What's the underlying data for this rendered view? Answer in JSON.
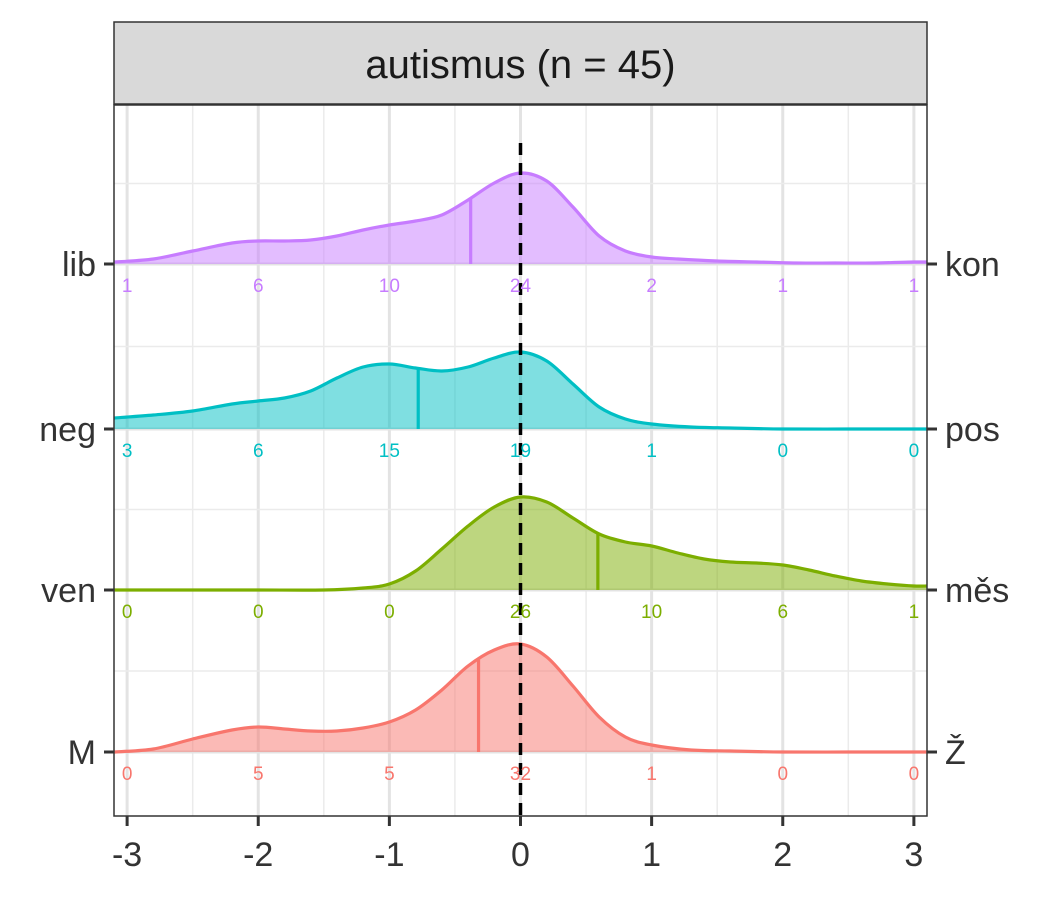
{
  "chart_data": {
    "type": "ridgeline",
    "title": "autismus (n = 45)",
    "xlabel": "",
    "ylabel": "",
    "xlim": [
      -3.1,
      3.1
    ],
    "x_ticks": [
      "-3",
      "-2",
      "-1",
      "0",
      "1",
      "2",
      "3"
    ],
    "x_tick_values": [
      -3,
      -2,
      -1,
      0,
      1,
      2,
      3
    ],
    "reference_line": 0,
    "grid": true,
    "count_positions": [
      -3,
      -2,
      -1,
      0,
      1,
      2,
      3
    ],
    "series": [
      {
        "left_label": "lib",
        "right_label": "kon",
        "color": "#C77CFF",
        "median": -0.38,
        "counts": [
          "1",
          "6",
          "10",
          "24",
          "2",
          "1",
          "1"
        ],
        "density_x": [
          -3.1,
          -2.8,
          -2.5,
          -2.2,
          -2.0,
          -1.8,
          -1.6,
          -1.4,
          -1.2,
          -1.0,
          -0.8,
          -0.6,
          -0.4,
          -0.2,
          0.0,
          0.2,
          0.4,
          0.6,
          0.8,
          1.0,
          1.2,
          1.5,
          1.8,
          2.1,
          2.4,
          2.7,
          3.0,
          3.1
        ],
        "density_y": [
          0.02,
          0.05,
          0.13,
          0.21,
          0.23,
          0.23,
          0.24,
          0.28,
          0.34,
          0.39,
          0.43,
          0.49,
          0.64,
          0.81,
          0.91,
          0.83,
          0.57,
          0.28,
          0.13,
          0.07,
          0.05,
          0.03,
          0.02,
          0.01,
          0.01,
          0.01,
          0.02,
          0.02
        ]
      },
      {
        "left_label": "neg",
        "right_label": "pos",
        "color": "#00BFC4",
        "median": -0.78,
        "counts": [
          "3",
          "6",
          "15",
          "19",
          "1",
          "0",
          "0"
        ],
        "density_x": [
          -3.1,
          -2.8,
          -2.5,
          -2.2,
          -2.0,
          -1.8,
          -1.6,
          -1.4,
          -1.2,
          -1.0,
          -0.8,
          -0.6,
          -0.4,
          -0.2,
          0.0,
          0.2,
          0.4,
          0.6,
          0.8,
          1.0,
          1.3,
          1.6,
          2.0,
          2.5,
          3.0,
          3.1
        ],
        "density_y": [
          0.11,
          0.14,
          0.18,
          0.25,
          0.28,
          0.31,
          0.38,
          0.51,
          0.62,
          0.65,
          0.61,
          0.58,
          0.62,
          0.71,
          0.77,
          0.68,
          0.45,
          0.22,
          0.1,
          0.05,
          0.02,
          0.01,
          0.0,
          0.0,
          0.0,
          0.0
        ]
      },
      {
        "left_label": "ven",
        "right_label": "měs",
        "color": "#7CAE00",
        "median": 0.59,
        "counts": [
          "0",
          "0",
          "0",
          "26",
          "10",
          "6",
          "1"
        ],
        "density_x": [
          -3.1,
          -2.5,
          -2.0,
          -1.5,
          -1.2,
          -1.0,
          -0.8,
          -0.6,
          -0.4,
          -0.2,
          0.0,
          0.2,
          0.4,
          0.6,
          0.8,
          1.0,
          1.2,
          1.4,
          1.6,
          1.8,
          2.0,
          2.2,
          2.4,
          2.6,
          2.8,
          3.0,
          3.1
        ],
        "density_y": [
          0.0,
          0.0,
          0.0,
          0.0,
          0.02,
          0.06,
          0.19,
          0.41,
          0.64,
          0.83,
          0.93,
          0.88,
          0.72,
          0.56,
          0.48,
          0.44,
          0.37,
          0.31,
          0.28,
          0.27,
          0.25,
          0.2,
          0.14,
          0.09,
          0.06,
          0.04,
          0.04
        ]
      },
      {
        "left_label": "M",
        "right_label": "Ž",
        "color": "#F8766D",
        "median": -0.32,
        "counts": [
          "0",
          "5",
          "5",
          "32",
          "1",
          "0",
          "0"
        ],
        "density_x": [
          -3.1,
          -2.8,
          -2.5,
          -2.2,
          -2.0,
          -1.8,
          -1.6,
          -1.4,
          -1.2,
          -1.0,
          -0.8,
          -0.6,
          -0.4,
          -0.2,
          0.0,
          0.2,
          0.4,
          0.6,
          0.8,
          1.0,
          1.3,
          1.6,
          2.0,
          2.5,
          3.0,
          3.1
        ],
        "density_y": [
          0.0,
          0.03,
          0.13,
          0.22,
          0.25,
          0.23,
          0.21,
          0.21,
          0.24,
          0.3,
          0.42,
          0.62,
          0.86,
          1.02,
          1.08,
          0.95,
          0.66,
          0.35,
          0.15,
          0.07,
          0.02,
          0.01,
          0.0,
          0.0,
          0.0,
          0.0
        ]
      }
    ]
  }
}
